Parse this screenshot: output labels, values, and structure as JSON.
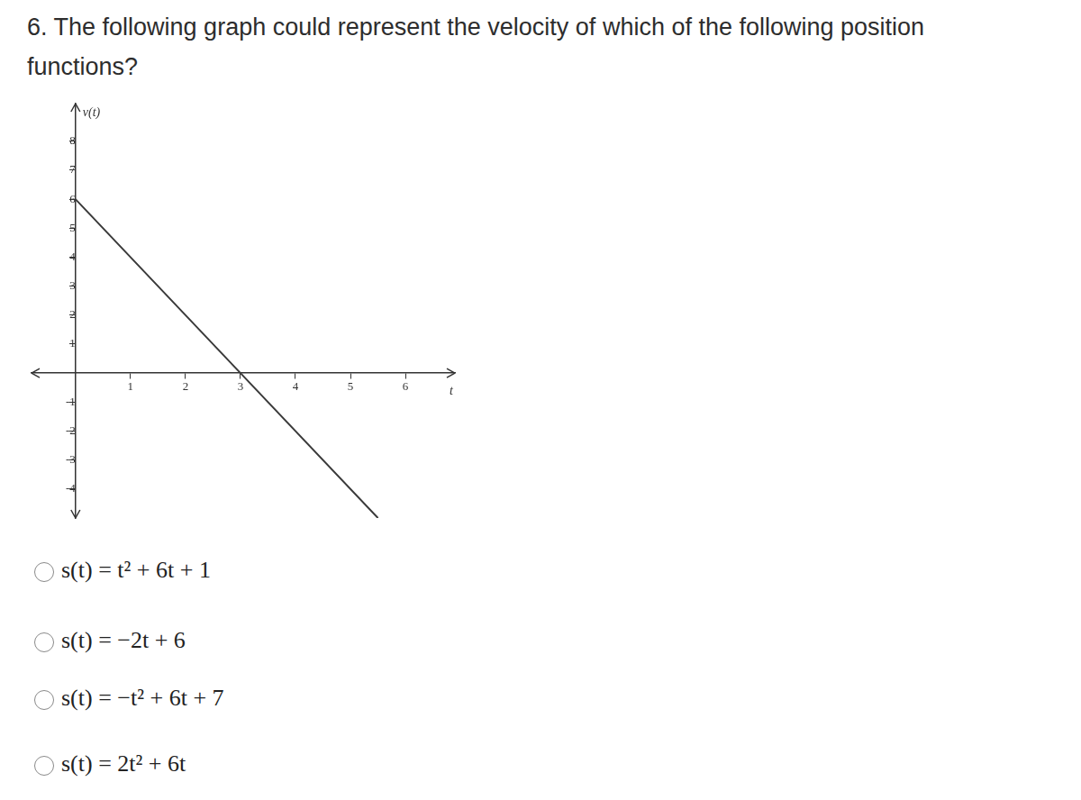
{
  "question": "6. The following graph could represent the velocity of which of the following position functions?",
  "options": [
    "s(t) = t² + 6t + 1",
    "s(t) = −2t + 6",
    "s(t) = −t² + 6t + 7",
    "s(t) = 2t² + 6t"
  ],
  "chart_data": {
    "type": "line",
    "y_label": "v(t)",
    "x_label": "t",
    "x": [
      0,
      3,
      5.5
    ],
    "values": [
      6,
      0,
      -5
    ],
    "color": "#3a3a3a",
    "xlim": [
      -0.8,
      6.9
    ],
    "ylim": [
      -5,
      9.3
    ],
    "xticks": [
      1,
      2,
      3,
      4,
      5,
      6
    ],
    "yticks": [
      -4,
      -3,
      -2,
      -1,
      1,
      2,
      3,
      4,
      5,
      6,
      7,
      8
    ],
    "grid": false
  }
}
